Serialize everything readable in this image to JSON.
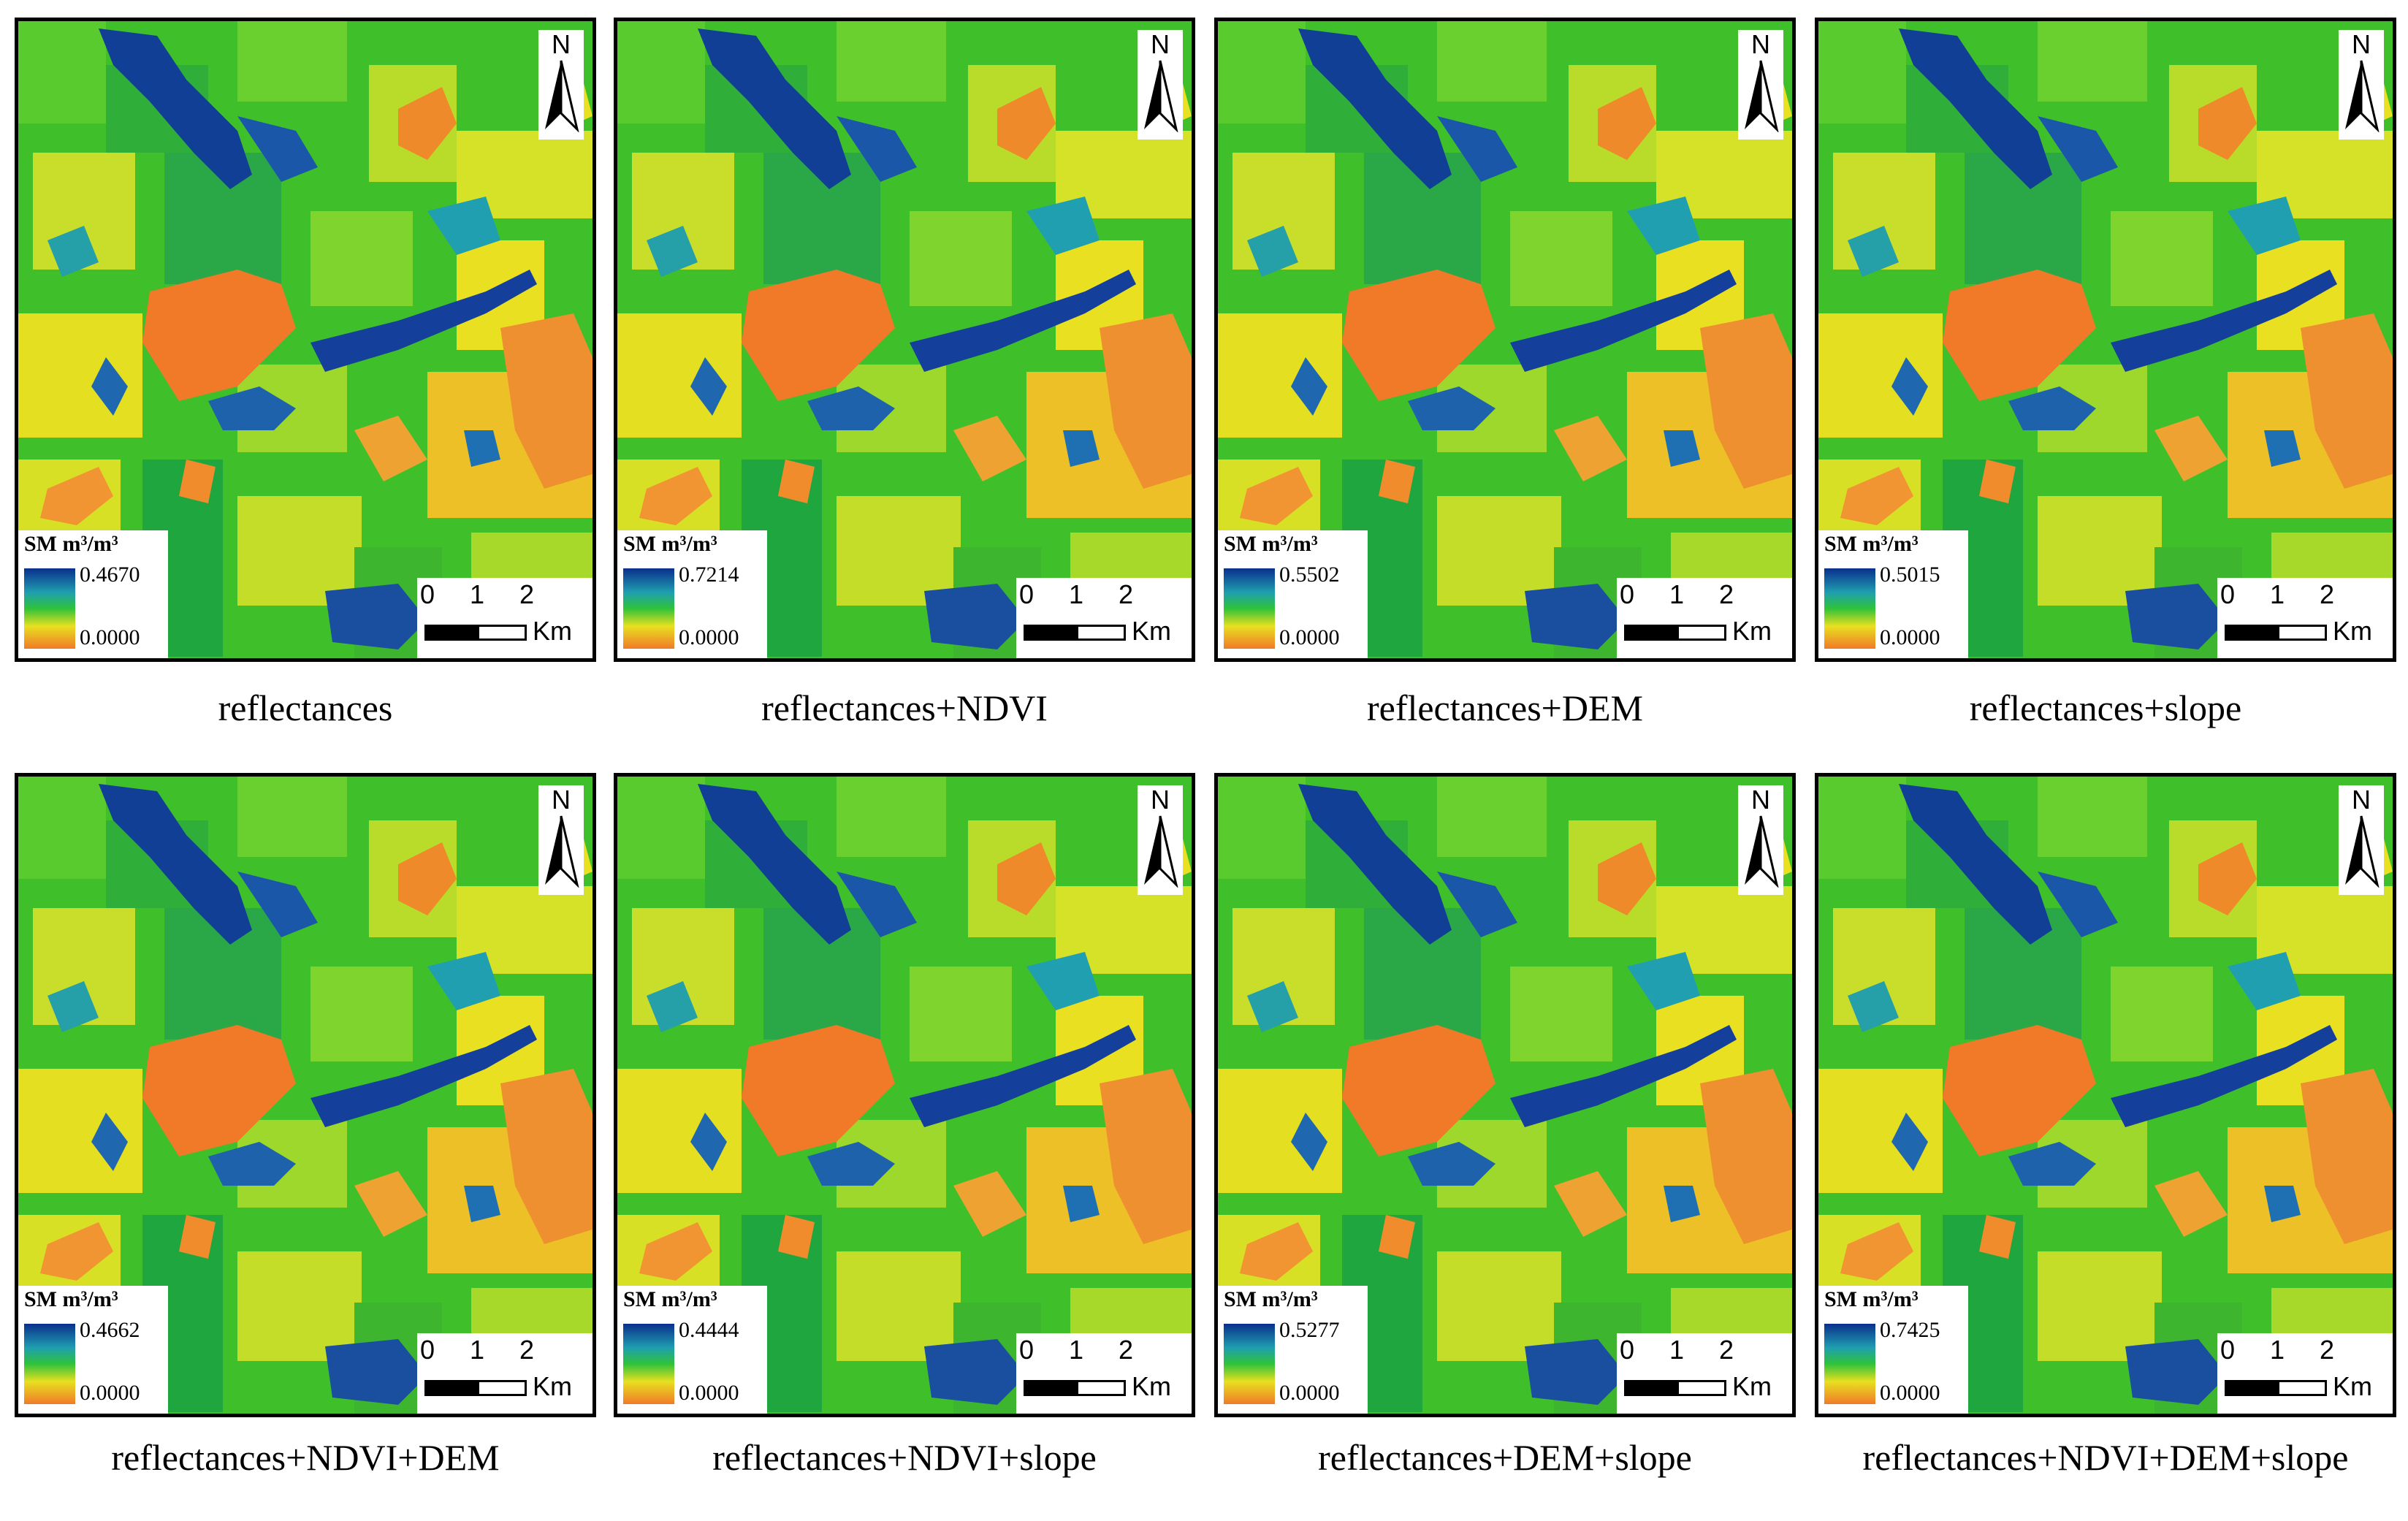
{
  "figure": {
    "panels": [
      {
        "caption": "reflectances",
        "legend_title": "SM m³/m³",
        "legend_max": "0.4670",
        "legend_min": "0.0000"
      },
      {
        "caption": "reflectances+NDVI",
        "legend_title": "SM m³/m³",
        "legend_max": "0.7214",
        "legend_min": "0.0000"
      },
      {
        "caption": "reflectances+DEM",
        "legend_title": "SM m³/m³",
        "legend_max": "0.5502",
        "legend_min": "0.0000"
      },
      {
        "caption": "reflectances+slope",
        "legend_title": "SM m³/m³",
        "legend_max": "0.5015",
        "legend_min": "0.0000"
      },
      {
        "caption": "reflectances+NDVI+DEM",
        "legend_title": "SM m³/m³",
        "legend_max": "0.4662",
        "legend_min": "0.0000"
      },
      {
        "caption": "reflectances+NDVI+slope",
        "legend_title": "SM m³/m³",
        "legend_max": "0.4444",
        "legend_min": "0.0000"
      },
      {
        "caption": "reflectances+DEM+slope",
        "legend_title": "SM m³/m³",
        "legend_max": "0.5277",
        "legend_min": "0.0000"
      },
      {
        "caption": "reflectances+NDVI+DEM+slope",
        "legend_title": "SM m³/m³",
        "legend_max": "0.7425",
        "legend_min": "0.0000"
      }
    ],
    "north_arrow": {
      "label": "N",
      "icon": "north-arrow-icon"
    },
    "scale_bar": {
      "ticks": [
        "0",
        "1",
        "2"
      ],
      "unit": "Km"
    },
    "colors": {
      "wet": "#0a2f8c",
      "moist": "#1f9fb0",
      "medium": "#2fc23a",
      "dry": "#e8e020",
      "very_dry": "#f07a28"
    }
  }
}
